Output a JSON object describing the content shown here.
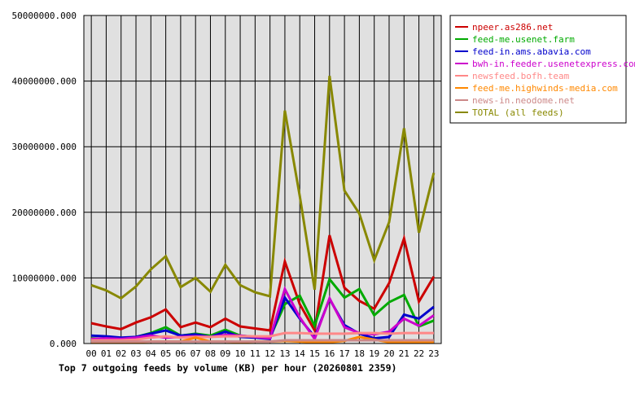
{
  "chart_data": {
    "type": "line",
    "title": "Top 7 outgoing feeds by volume (KB) per hour (20260801 2359)",
    "xlabel": "",
    "ylabel": "",
    "ylim": [
      0,
      50000000
    ],
    "yticks": [
      0,
      10000000,
      20000000,
      30000000,
      40000000,
      50000000
    ],
    "ytick_labels": [
      "0.000",
      "10000000.000",
      "20000000.000",
      "30000000.000",
      "40000000.000",
      "50000000.000"
    ],
    "grid": true,
    "legend_position": "top-right",
    "plot_background": "#e0e0e0",
    "categories": [
      "00",
      "01",
      "02",
      "03",
      "04",
      "05",
      "06",
      "07",
      "08",
      "09",
      "10",
      "11",
      "12",
      "13",
      "14",
      "15",
      "16",
      "17",
      "18",
      "19",
      "20",
      "21",
      "22",
      "23"
    ],
    "series": [
      {
        "name": "npeer.as286.net",
        "color": "#cc0000",
        "values": [
          3100000,
          2600000,
          2200000,
          3200000,
          4000000,
          5200000,
          2500000,
          3200000,
          2500000,
          3800000,
          2600000,
          2300000,
          2000000,
          12500000,
          6000000,
          2000000,
          16500000,
          8500000,
          6500000,
          5300000,
          9200000,
          16000000,
          6400000,
          10200000
        ]
      },
      {
        "name": "feed-me.usenet.farm",
        "color": "#00aa00",
        "values": [
          800000,
          700000,
          600000,
          1000000,
          1600000,
          2500000,
          1200000,
          1500000,
          1200000,
          2100000,
          1200000,
          1000000,
          900000,
          6000000,
          7300000,
          2700000,
          9800000,
          7000000,
          8300000,
          4300000,
          6300000,
          7400000,
          2600000,
          3500000
        ]
      },
      {
        "name": "feed-in.ams.abavia.com",
        "color": "#0000cc",
        "values": [
          1200000,
          1100000,
          900000,
          1000000,
          1500000,
          2000000,
          1200000,
          1400000,
          1000000,
          1800000,
          1000000,
          900000,
          700000,
          7000000,
          3800000,
          1000000,
          6800000,
          2800000,
          1500000,
          800000,
          1000000,
          4400000,
          3800000,
          5600000
        ]
      },
      {
        "name": "bwh-in.feeder.usenetexpress.com",
        "color": "#cc00cc",
        "values": [
          700000,
          800000,
          700000,
          900000,
          1200000,
          900000,
          1000000,
          1100000,
          1000000,
          1300000,
          1200000,
          1000000,
          800000,
          8300000,
          4000000,
          700000,
          6900000,
          2500000,
          1600000,
          1400000,
          1800000,
          3800000,
          2700000,
          4300000
        ]
      },
      {
        "name": "newsfeed.bofh.team",
        "color": "#ff8888",
        "values": [
          500000,
          500000,
          500000,
          600000,
          900000,
          1100000,
          900000,
          1000000,
          1000000,
          1100000,
          1100000,
          1100000,
          1100000,
          1600000,
          1600000,
          1500000,
          1500000,
          1500000,
          1600000,
          1600000,
          1500000,
          1600000,
          1600000,
          1600000
        ]
      },
      {
        "name": "feed-me.highwinds-media.com",
        "color": "#ff8800",
        "values": [
          200000,
          200000,
          200000,
          200000,
          300000,
          300000,
          300000,
          900000,
          300000,
          300000,
          200000,
          300000,
          300000,
          400000,
          300000,
          200000,
          200000,
          400000,
          1000000,
          600000,
          200000,
          200000,
          200000,
          200000
        ]
      },
      {
        "name": "news-in.neodome.net",
        "color": "#cc8888",
        "values": [
          300000,
          300000,
          300000,
          300000,
          300000,
          300000,
          300000,
          300000,
          300000,
          300000,
          300000,
          300000,
          300000,
          500000,
          500000,
          500000,
          500000,
          500000,
          500000,
          500000,
          500000,
          500000,
          500000,
          500000
        ]
      },
      {
        "name": "TOTAL (all feeds)",
        "color": "#888800",
        "values": [
          8900000,
          8100000,
          6900000,
          8700000,
          11300000,
          13300000,
          8600000,
          10000000,
          7900000,
          12000000,
          8900000,
          7800000,
          7200000,
          35500000,
          22500000,
          8200000,
          40800000,
          23300000,
          19800000,
          12700000,
          18500000,
          32800000,
          16900000,
          26000000
        ]
      }
    ]
  }
}
